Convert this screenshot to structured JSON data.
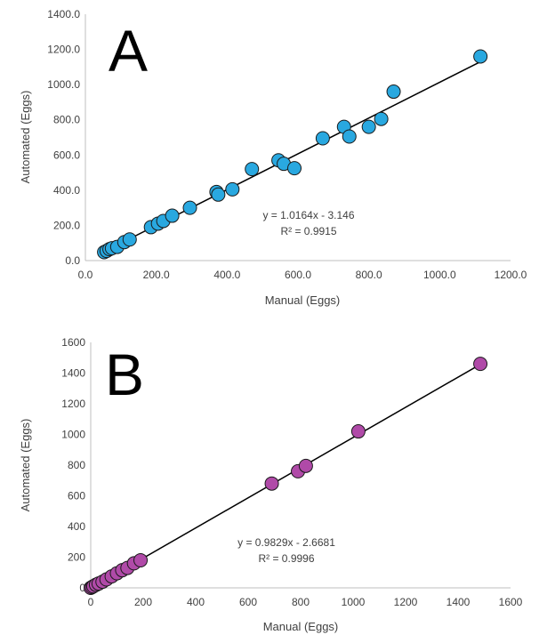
{
  "chart_data": [
    {
      "type": "scatter",
      "panel_label": "A",
      "xlabel": "Manual (Eggs)",
      "ylabel": "Automated (Eggs)",
      "xlim": [
        0,
        1200
      ],
      "ylim": [
        0,
        1400
      ],
      "x_ticks": [
        "0.0",
        "200.0",
        "400.0",
        "600.0",
        "800.0",
        "1000.0",
        "1200.0"
      ],
      "y_ticks": [
        "0.0",
        "200.0",
        "400.0",
        "600.0",
        "800.0",
        "1000.0",
        "1200.0",
        "1400.0"
      ],
      "grid": false,
      "marker_color": "#29a8e0",
      "trendline": {
        "slope": 1.0164,
        "intercept": -3.146
      },
      "equation": "y = 1.0164x - 3.146",
      "r_squared": "R² = 0.9915",
      "points": [
        [
          53,
          48
        ],
        [
          60,
          55
        ],
        [
          68,
          65
        ],
        [
          75,
          70
        ],
        [
          90,
          78
        ],
        [
          110,
          105
        ],
        [
          125,
          120
        ],
        [
          185,
          190
        ],
        [
          205,
          210
        ],
        [
          220,
          225
        ],
        [
          245,
          255
        ],
        [
          295,
          300
        ],
        [
          370,
          390
        ],
        [
          375,
          375
        ],
        [
          415,
          405
        ],
        [
          470,
          520
        ],
        [
          545,
          570
        ],
        [
          560,
          550
        ],
        [
          590,
          525
        ],
        [
          670,
          695
        ],
        [
          730,
          760
        ],
        [
          745,
          705
        ],
        [
          800,
          760
        ],
        [
          835,
          805
        ],
        [
          870,
          960
        ],
        [
          1115,
          1160
        ]
      ]
    },
    {
      "type": "scatter",
      "panel_label": "B",
      "xlabel": "Manual (Eggs)",
      "ylabel": "Automated (Eggs)",
      "xlim": [
        0,
        1600
      ],
      "ylim": [
        0,
        1600
      ],
      "x_ticks": [
        "0",
        "200",
        "400",
        "600",
        "800",
        "1000",
        "1200",
        "1400",
        "1600"
      ],
      "y_ticks": [
        "0",
        "200",
        "400",
        "600",
        "800",
        "1000",
        "1200",
        "1400",
        "1600"
      ],
      "grid": false,
      "marker_color": "#b04aa8",
      "trendline": {
        "slope": 0.9829,
        "intercept": -2.6681
      },
      "equation": "y = 0.9829x - 2.6681",
      "r_squared": "R² = 0.9996",
      "points": [
        [
          0,
          0
        ],
        [
          5,
          5
        ],
        [
          10,
          10
        ],
        [
          20,
          20
        ],
        [
          30,
          28
        ],
        [
          45,
          40
        ],
        [
          60,
          55
        ],
        [
          80,
          75
        ],
        [
          100,
          95
        ],
        [
          120,
          115
        ],
        [
          140,
          130
        ],
        [
          165,
          160
        ],
        [
          190,
          180
        ],
        [
          690,
          680
        ],
        [
          790,
          760
        ],
        [
          820,
          795
        ],
        [
          1020,
          1020
        ],
        [
          1485,
          1460
        ]
      ]
    }
  ]
}
